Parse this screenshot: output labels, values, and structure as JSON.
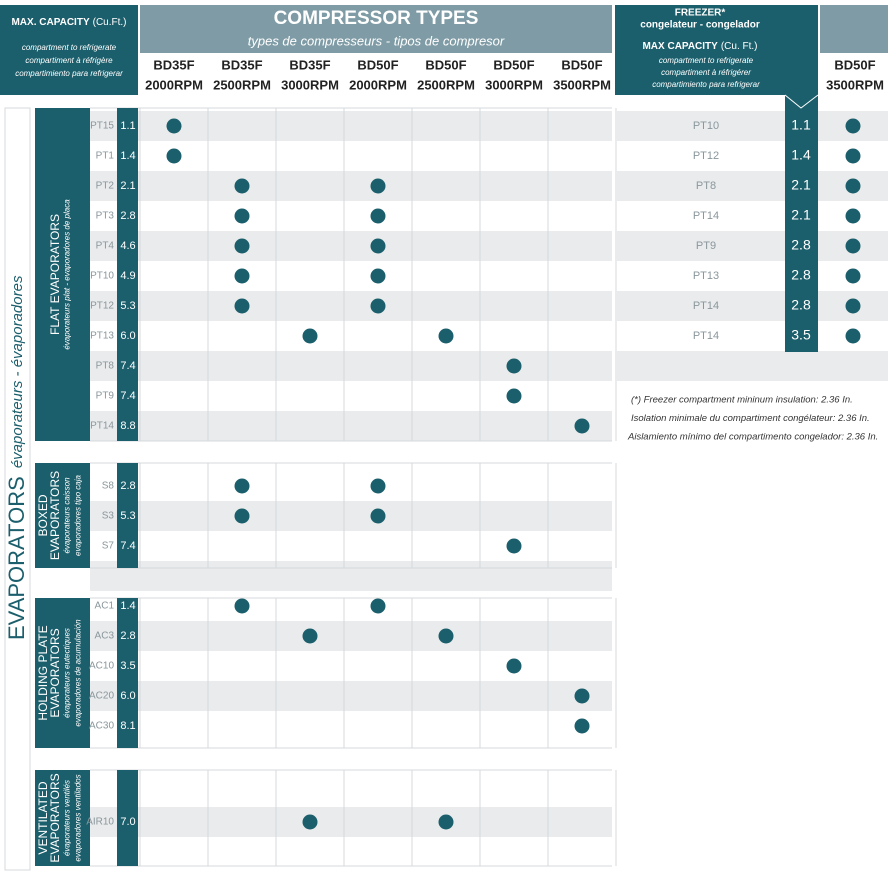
{
  "header": {
    "capacity_title": "MAX. CAPACITY",
    "capacity_unit": "(Cu.Ft.)",
    "capacity_notes": [
      "compartment to refrigerate",
      "compartiment à réfrigère",
      "compartimiento para refrigerar"
    ],
    "title": "COMPRESSOR TYPES",
    "subtitle": "types de compresseurs - tipos de compresor"
  },
  "columns": [
    {
      "model": "BD35F",
      "rpm": "2000RPM"
    },
    {
      "model": "BD35F",
      "rpm": "2500RPM"
    },
    {
      "model": "BD35F",
      "rpm": "3000RPM"
    },
    {
      "model": "BD50F",
      "rpm": "2000RPM"
    },
    {
      "model": "BD50F",
      "rpm": "2500RPM"
    },
    {
      "model": "BD50F",
      "rpm": "3000RPM"
    },
    {
      "model": "BD50F",
      "rpm": "3500RPM"
    }
  ],
  "side_label": {
    "title": "EVAPORATORS",
    "subtitle": "évaporateurs - évaporadores"
  },
  "groups": [
    {
      "title": [
        "FLAT EVAPORATORS"
      ],
      "subtitle": [
        "évaporateurs plat - evaporadores de placa"
      ],
      "rows": [
        {
          "name": "PT15",
          "capacity": "1.1",
          "compatible": [
            0
          ]
        },
        {
          "name": "PT1",
          "capacity": "1.4",
          "compatible": [
            0
          ]
        },
        {
          "name": "PT2",
          "capacity": "2.1",
          "compatible": [
            1,
            3
          ]
        },
        {
          "name": "PT3",
          "capacity": "2.8",
          "compatible": [
            1,
            3
          ]
        },
        {
          "name": "PT4",
          "capacity": "4.6",
          "compatible": [
            1,
            3
          ]
        },
        {
          "name": "PT10",
          "capacity": "4.9",
          "compatible": [
            1,
            3
          ]
        },
        {
          "name": "PT12",
          "capacity": "5.3",
          "compatible": [
            1,
            3
          ]
        },
        {
          "name": "PT13",
          "capacity": "6.0",
          "compatible": [
            2,
            4
          ]
        },
        {
          "name": "PT8",
          "capacity": "7.4",
          "compatible": [
            5
          ]
        },
        {
          "name": "PT9",
          "capacity": "7.4",
          "compatible": [
            5
          ]
        },
        {
          "name": "PT14",
          "capacity": "8.8",
          "compatible": [
            6
          ]
        }
      ]
    },
    {
      "title": [
        "BOXED",
        "EVAPORATORS"
      ],
      "subtitle": [
        "évaporateurs caisson",
        "evaporadores tipo caja"
      ],
      "rows": [
        {
          "name": "S8",
          "capacity": "2.8",
          "compatible": [
            1,
            3
          ]
        },
        {
          "name": "S3",
          "capacity": "5.3",
          "compatible": [
            1,
            3
          ]
        },
        {
          "name": "S7",
          "capacity": "7.4",
          "compatible": [
            5
          ]
        }
      ]
    },
    {
      "title": [
        "HOLDING PLATE",
        "EVAPORATORS"
      ],
      "subtitle": [
        "évaporateurs eutectiques",
        "evaporadores de acumulación"
      ],
      "rows": [
        {
          "name": "AC1",
          "capacity": "1.4",
          "compatible": [
            1,
            3
          ]
        },
        {
          "name": "AC3",
          "capacity": "2.8",
          "compatible": [
            2,
            4
          ]
        },
        {
          "name": "AC10",
          "capacity": "3.5",
          "compatible": [
            5
          ]
        },
        {
          "name": "AC20",
          "capacity": "6.0",
          "compatible": [
            6
          ]
        },
        {
          "name": "AC30",
          "capacity": "8.1",
          "compatible": [
            6
          ]
        }
      ]
    },
    {
      "title": [
        "VENTILATED",
        "EVAPORATORS"
      ],
      "subtitle": [
        "évaporateurs ventilés",
        "evaporadores ventilados"
      ],
      "rows": [
        {
          "name": "AIR10",
          "capacity": "7.0",
          "compatible": [
            2,
            4
          ]
        }
      ]
    }
  ],
  "freezer": {
    "title": "FREEZER*",
    "subtitle": "congelateur - congelador",
    "capacity_title": "MAX CAPACITY",
    "capacity_unit": "(Cu. Ft.)",
    "capacity_notes": [
      "compartment to refrigerate",
      "compartiment à réfrigérer",
      "compartimiento para refrigerar"
    ],
    "column": {
      "model": "BD50F",
      "rpm": "3500RPM"
    },
    "rows": [
      {
        "name": "PT10",
        "capacity": "1.1",
        "compatible": [
          0
        ]
      },
      {
        "name": "PT12",
        "capacity": "1.4",
        "compatible": [
          0
        ]
      },
      {
        "name": "PT8",
        "capacity": "2.1",
        "compatible": [
          0
        ]
      },
      {
        "name": "PT14",
        "capacity": "2.1",
        "compatible": [
          0
        ]
      },
      {
        "name": "PT9",
        "capacity": "2.8",
        "compatible": [
          0
        ]
      },
      {
        "name": "PT13",
        "capacity": "2.8",
        "compatible": [
          0
        ]
      },
      {
        "name": "PT14",
        "capacity": "2.8",
        "compatible": [
          0
        ]
      },
      {
        "name": "PT14",
        "capacity": "3.5",
        "compatible": [
          0
        ]
      }
    ],
    "footnotes": [
      "(*)  Freezer compartment mininum insulation: 2.36 In.",
      "Isolation minimale du compartiment congélateur: 2.36 In.",
      "Aislamiento mínimo del compartimento congelador: 2.36 In."
    ]
  }
}
